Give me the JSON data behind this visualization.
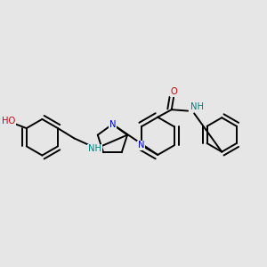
{
  "bg_color": "#e6e6e6",
  "N_color": "#0000cc",
  "O_color": "#cc0000",
  "teal_color": "#008080",
  "bond_color": "#000000",
  "lw": 1.4,
  "fs": 7.2,
  "xlim": [
    0.0,
    1.0
  ],
  "ylim": [
    0.25,
    0.85
  ]
}
